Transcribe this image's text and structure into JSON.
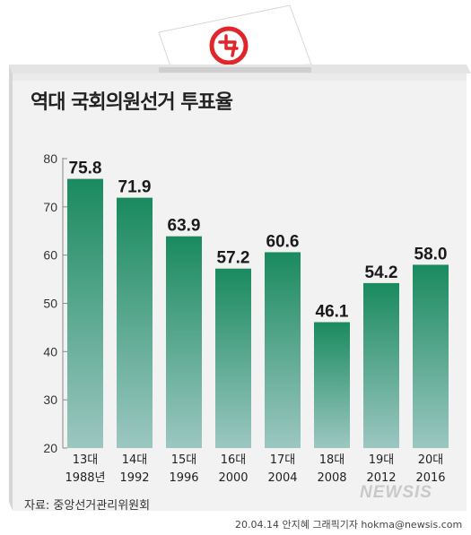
{
  "title": "역대 국회의원선거 투표율",
  "source": "자료: 중앙선거관리위원회",
  "credit": "20.04.14 안지혜 그래픽기자 hokma@newsis.com",
  "logo_text": "NEWSIS",
  "colors": {
    "bar_top": "#1a8a5f",
    "bar_bottom": "#9cc7c1",
    "box_face": "#f2f2f2",
    "box_side": "#dcdcdc",
    "ballot_mark": "#e0262b"
  },
  "chart_data": {
    "type": "bar",
    "title": "역대 국회의원선거 투표율",
    "xlabel": "",
    "ylabel": "",
    "ylim": [
      20,
      80
    ],
    "yticks": [
      20,
      30,
      40,
      50,
      60,
      70,
      80
    ],
    "categories": [
      {
        "session": "13대",
        "year": "1988년"
      },
      {
        "session": "14대",
        "year": "1992"
      },
      {
        "session": "15대",
        "year": "1996"
      },
      {
        "session": "16대",
        "year": "2000"
      },
      {
        "session": "17대",
        "year": "2004"
      },
      {
        "session": "18대",
        "year": "2008"
      },
      {
        "session": "19대",
        "year": "2012"
      },
      {
        "session": "20대",
        "year": "2016"
      }
    ],
    "values": [
      75.8,
      71.9,
      63.9,
      57.2,
      60.6,
      46.1,
      54.2,
      58.0
    ],
    "value_labels": [
      "75.8",
      "71.9",
      "63.9",
      "57.2",
      "60.6",
      "46.1",
      "54.2",
      "58.0"
    ],
    "grid": false
  }
}
